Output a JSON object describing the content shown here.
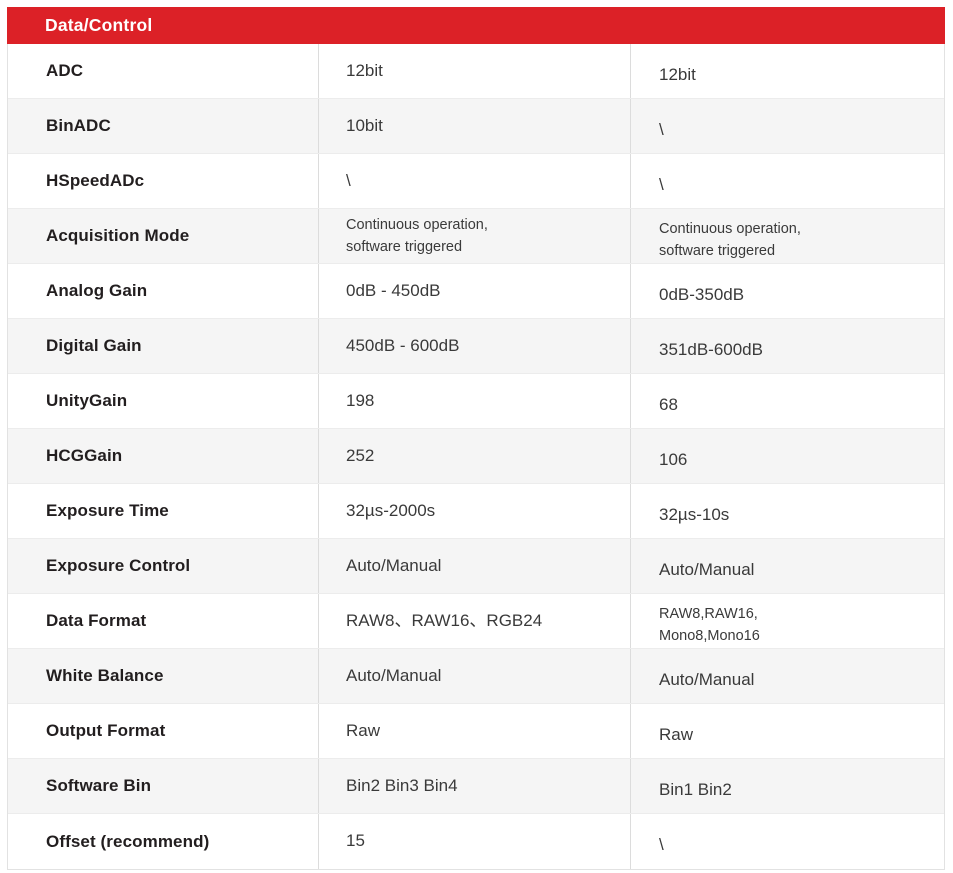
{
  "header": {
    "title": "Data/Control",
    "bg_color": "#dc2127",
    "text_color": "#ffffff"
  },
  "colors": {
    "row_alt": "#f5f5f5",
    "border_outer": "#e2e2e2",
    "divider_vertical": "#dcdcdc",
    "divider_horizontal": "#ececec",
    "label_text": "#221e1f",
    "value_text": "#3a3a3a"
  },
  "table": {
    "rows": [
      {
        "label": "ADC",
        "col1": "12bit",
        "col2": "12bit"
      },
      {
        "label": "BinADC",
        "col1": "10bit",
        "col2": "\\"
      },
      {
        "label": "HSpeedADc",
        "col1": "\\",
        "col2": "\\"
      },
      {
        "label": "Acquisition Mode",
        "col1": "Continuous operation,\nsoftware triggered",
        "col2": "Continuous operation,\nsoftware triggered"
      },
      {
        "label": "Analog Gain",
        "col1": "0dB - 450dB",
        "col2": "0dB-350dB"
      },
      {
        "label": "Digital Gain",
        "col1": "450dB - 600dB",
        "col2": "351dB-600dB"
      },
      {
        "label": "UnityGain",
        "col1": "198",
        "col2": "68"
      },
      {
        "label": "HCGGain",
        "col1": "252",
        "col2": "106"
      },
      {
        "label": "Exposure Time",
        "col1": "32µs-2000s",
        "col2": "32µs-10s"
      },
      {
        "label": "Exposure Control",
        "col1": "Auto/Manual",
        "col2": "Auto/Manual"
      },
      {
        "label": "Data Format",
        "col1": "RAW8、RAW16、RGB24",
        "col2": "RAW8,RAW16,\nMono8,Mono16"
      },
      {
        "label": "White Balance",
        "col1": "Auto/Manual",
        "col2": "Auto/Manual"
      },
      {
        "label": "Output Format",
        "col1": "Raw",
        "col2": "Raw"
      },
      {
        "label": "Software Bin",
        "col1": "Bin2 Bin3 Bin4",
        "col2": "Bin1 Bin2"
      },
      {
        "label": "Offset (recommend)",
        "col1": "15",
        "col2": "\\"
      }
    ]
  }
}
